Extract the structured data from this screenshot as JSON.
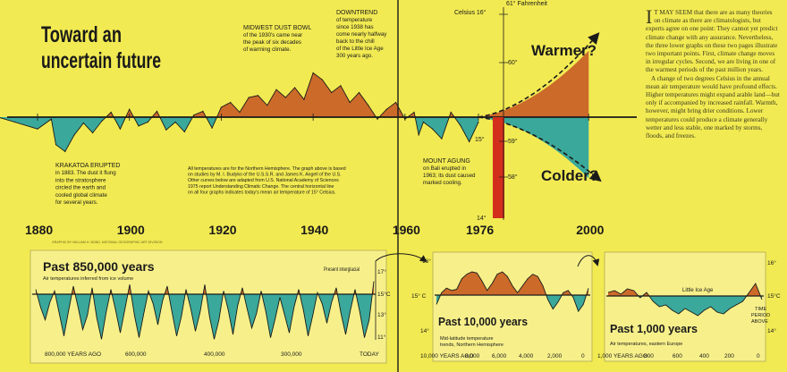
{
  "colors": {
    "warm": "#cc6a2a",
    "cold": "#3aa89a",
    "background": "#f2ea52",
    "lower_panel_bg": "#f7f08a",
    "axis": "#1a1a1a",
    "red_bar": "#d2301c"
  },
  "main": {
    "title_line1": "Toward an",
    "title_line2": "uncertain future",
    "warmer_label": "Warmer?",
    "colder_label": "Colder?",
    "celsius_label": "Celsius 16°",
    "fahrenheit_label": "61° Fahrenheit",
    "annotations": {
      "krakatoa": [
        "KRAKATOA ERUPTED",
        "in 1883. The dust it flung",
        "into the stratosphere",
        "circled the earth and",
        "cooled global climate",
        "for several years."
      ],
      "dust_bowl": [
        "MIDWEST DUST BOWL",
        "of the 1930's came near",
        "the peak of six decades",
        "of warming climate."
      ],
      "downtrend": [
        "DOWNTREND",
        "of temperature",
        "since 1938 has",
        "come nearly halfway",
        "back to the chill",
        "of the Little Ice Age",
        "300 years ago."
      ],
      "agung": [
        "MOUNT AGUNG",
        "on Bali erupted in",
        "1963; its dust caused",
        "marked cooling."
      ],
      "method": [
        "All temperatures are for the Northern Hemisphere. The graph above is based",
        "on studies by M. I. Budyko of the U.S.S.R. and James K. Angell of the U.S.",
        "Other curves below are adapted from U.S. National Academy of Sciences",
        "1975 report Understanding Climatic Change. The central horizontal line",
        "on all four graphs indicates today's mean air temperature of 15° Celsius."
      ]
    },
    "credit": "GRAPHIC BY WILLIAM H. BOND, NATIONAL GEOGRAPHIC ART DIVISION",
    "red_bar_ticks": {
      "top": "15°",
      "f59": "59°",
      "f58": "58°",
      "c14": "14°"
    },
    "f60": "60°"
  },
  "essay": {
    "dropcap": "I",
    "paragraphs": [
      "T MAY SEEM that there are as many theories on climate as there are climatologists, but experts agree on one point: They cannot yet predict climate change with any assurance. Nevertheless, the three lower graphs on these two pages illustrate two important points. First, climate change moves in irregular cycles. Second, we are living in one of the warmest periods of the past million years.",
      "A change of two degrees Celsius in the annual mean air temperature would have profound effects. Higher temperatures might expand arable land—but only if accompanied by increased rainfall. Warmth, however, might bring drier conditions. Lower temperatures could produce a climate generally wetter and less stable, one marked by storms, floods, and freezes."
    ]
  },
  "chart_data": [
    {
      "type": "area",
      "title": "Toward an uncertain future",
      "x": [
        1870,
        1875,
        1880,
        1883,
        1884,
        1886,
        1888,
        1890,
        1892,
        1894,
        1896,
        1898,
        1900,
        1902,
        1904,
        1906,
        1908,
        1910,
        1912,
        1914,
        1916,
        1918,
        1920,
        1922,
        1924,
        1926,
        1928,
        1930,
        1932,
        1934,
        1936,
        1938,
        1940,
        1942,
        1944,
        1946,
        1948,
        1950,
        1952,
        1954,
        1956,
        1958,
        1960,
        1962,
        1963,
        1964,
        1966,
        1968,
        1970,
        1972,
        1974,
        1976
      ],
      "y": [
        0.02,
        -0.05,
        -0.12,
        -0.02,
        -0.28,
        -0.35,
        -0.18,
        -0.06,
        -0.16,
        -0.04,
        0.05,
        -0.12,
        0.08,
        -0.09,
        -0.05,
        0.06,
        -0.13,
        -0.05,
        -0.15,
        0.02,
        0.06,
        -0.11,
        0.1,
        0.15,
        0.05,
        0.2,
        0.22,
        0.12,
        0.28,
        0.2,
        0.3,
        0.18,
        0.45,
        0.38,
        0.25,
        0.32,
        0.15,
        0.25,
        0.12,
        -0.02,
        0.08,
        0.15,
        -0.02,
        0.05,
        -0.18,
        -0.05,
        -0.12,
        -0.22,
        0.05,
        -0.08,
        -0.25,
        -0.05
      ],
      "x_ticks": [
        "1880",
        "1900",
        "1920",
        "1940",
        "1960",
        "1976",
        "2000"
      ],
      "y_unit": "°C deviation from 15°C",
      "projection": {
        "x": [
          1976,
          2000
        ],
        "warmer": 1.2,
        "colder": -1.1
      }
    },
    {
      "type": "area",
      "title": "Past 850,000 years",
      "subtitle": "Air temperatures inferred from ice volume",
      "x_ticks": [
        "800,000 YEARS AGO",
        "600,000",
        "400,000",
        "300,000",
        "TODAY"
      ],
      "y_ticks": [
        "17°",
        "15°C",
        "13°",
        "11°"
      ],
      "annotation": "Present interglacial",
      "y": [
        0.3,
        -0.8,
        -1.6,
        -0.5,
        0.2,
        -1.2,
        -2.6,
        -1.0,
        0.5,
        -0.8,
        -2.2,
        -1.3,
        0.4,
        -1.5,
        -2.8,
        -1.1,
        0.3,
        -1.0,
        -2.4,
        -0.9,
        0.6,
        -1.3,
        -2.7,
        -1.2,
        0.2,
        -0.6,
        -1.9,
        -0.4,
        0.5,
        -1.1,
        -2.6,
        -1.4,
        0.3,
        -0.9,
        -2.3,
        -1.1,
        0.6,
        -1.4,
        -2.8,
        -1.6,
        0.2,
        -1.0,
        -2.5,
        -0.7,
        0.4,
        -0.9,
        -2.1,
        -1.2,
        0.2,
        -1.1,
        -2.7,
        -1.5,
        -0.2,
        -1.3,
        -2.4,
        -0.8,
        0.3,
        -1.0,
        -2.6,
        -1.3,
        0.1,
        -0.6,
        -1.8,
        -0.5,
        0.4,
        -1.2,
        -2.5,
        -1.0,
        0.3,
        -1.1,
        -2.7,
        -1.6,
        0.8
      ]
    },
    {
      "type": "area",
      "title": "Past 10,000 years",
      "subtitle": "Mid-latitude temperature trends, Northern Hemisphere",
      "x_ticks": [
        "10,000 YEARS AGO",
        "8,000",
        "6,000",
        "4,000",
        "2,000",
        "0"
      ],
      "y_ticks": [
        "16°",
        "15° C",
        "14°"
      ],
      "y": [
        -0.4,
        0.1,
        0.3,
        0.2,
        0.25,
        0.7,
        0.9,
        1.0,
        0.95,
        0.6,
        0.2,
        0.5,
        0.9,
        1.0,
        0.8,
        0.4,
        0.1,
        0.4,
        0.7,
        0.9,
        0.8,
        0.4,
        -0.2,
        -0.6,
        -0.3,
        0.1,
        0.2,
        -0.1,
        -0.7,
        -0.4,
        0.3
      ]
    },
    {
      "type": "area",
      "title": "Past 1,000 years",
      "subtitle": "Air temperatures, eastern Europe",
      "x_ticks": [
        "1,000 YEARS AGO",
        "800",
        "600",
        "400",
        "200",
        "0"
      ],
      "y_ticks": [
        "16°",
        "15°C",
        "14°"
      ],
      "annotations": [
        "Little Ice Age",
        "TIME PERIOD ABOVE"
      ],
      "y": [
        0.2,
        0.3,
        0.1,
        0.4,
        0.3,
        -0.1,
        0.2,
        -0.3,
        -0.6,
        -0.5,
        -0.8,
        -1.0,
        -0.7,
        -0.9,
        -1.1,
        -0.8,
        -0.6,
        -0.9,
        -1.0,
        -0.7,
        -0.5,
        -0.3,
        0.2,
        0.7,
        -0.2
      ]
    }
  ]
}
